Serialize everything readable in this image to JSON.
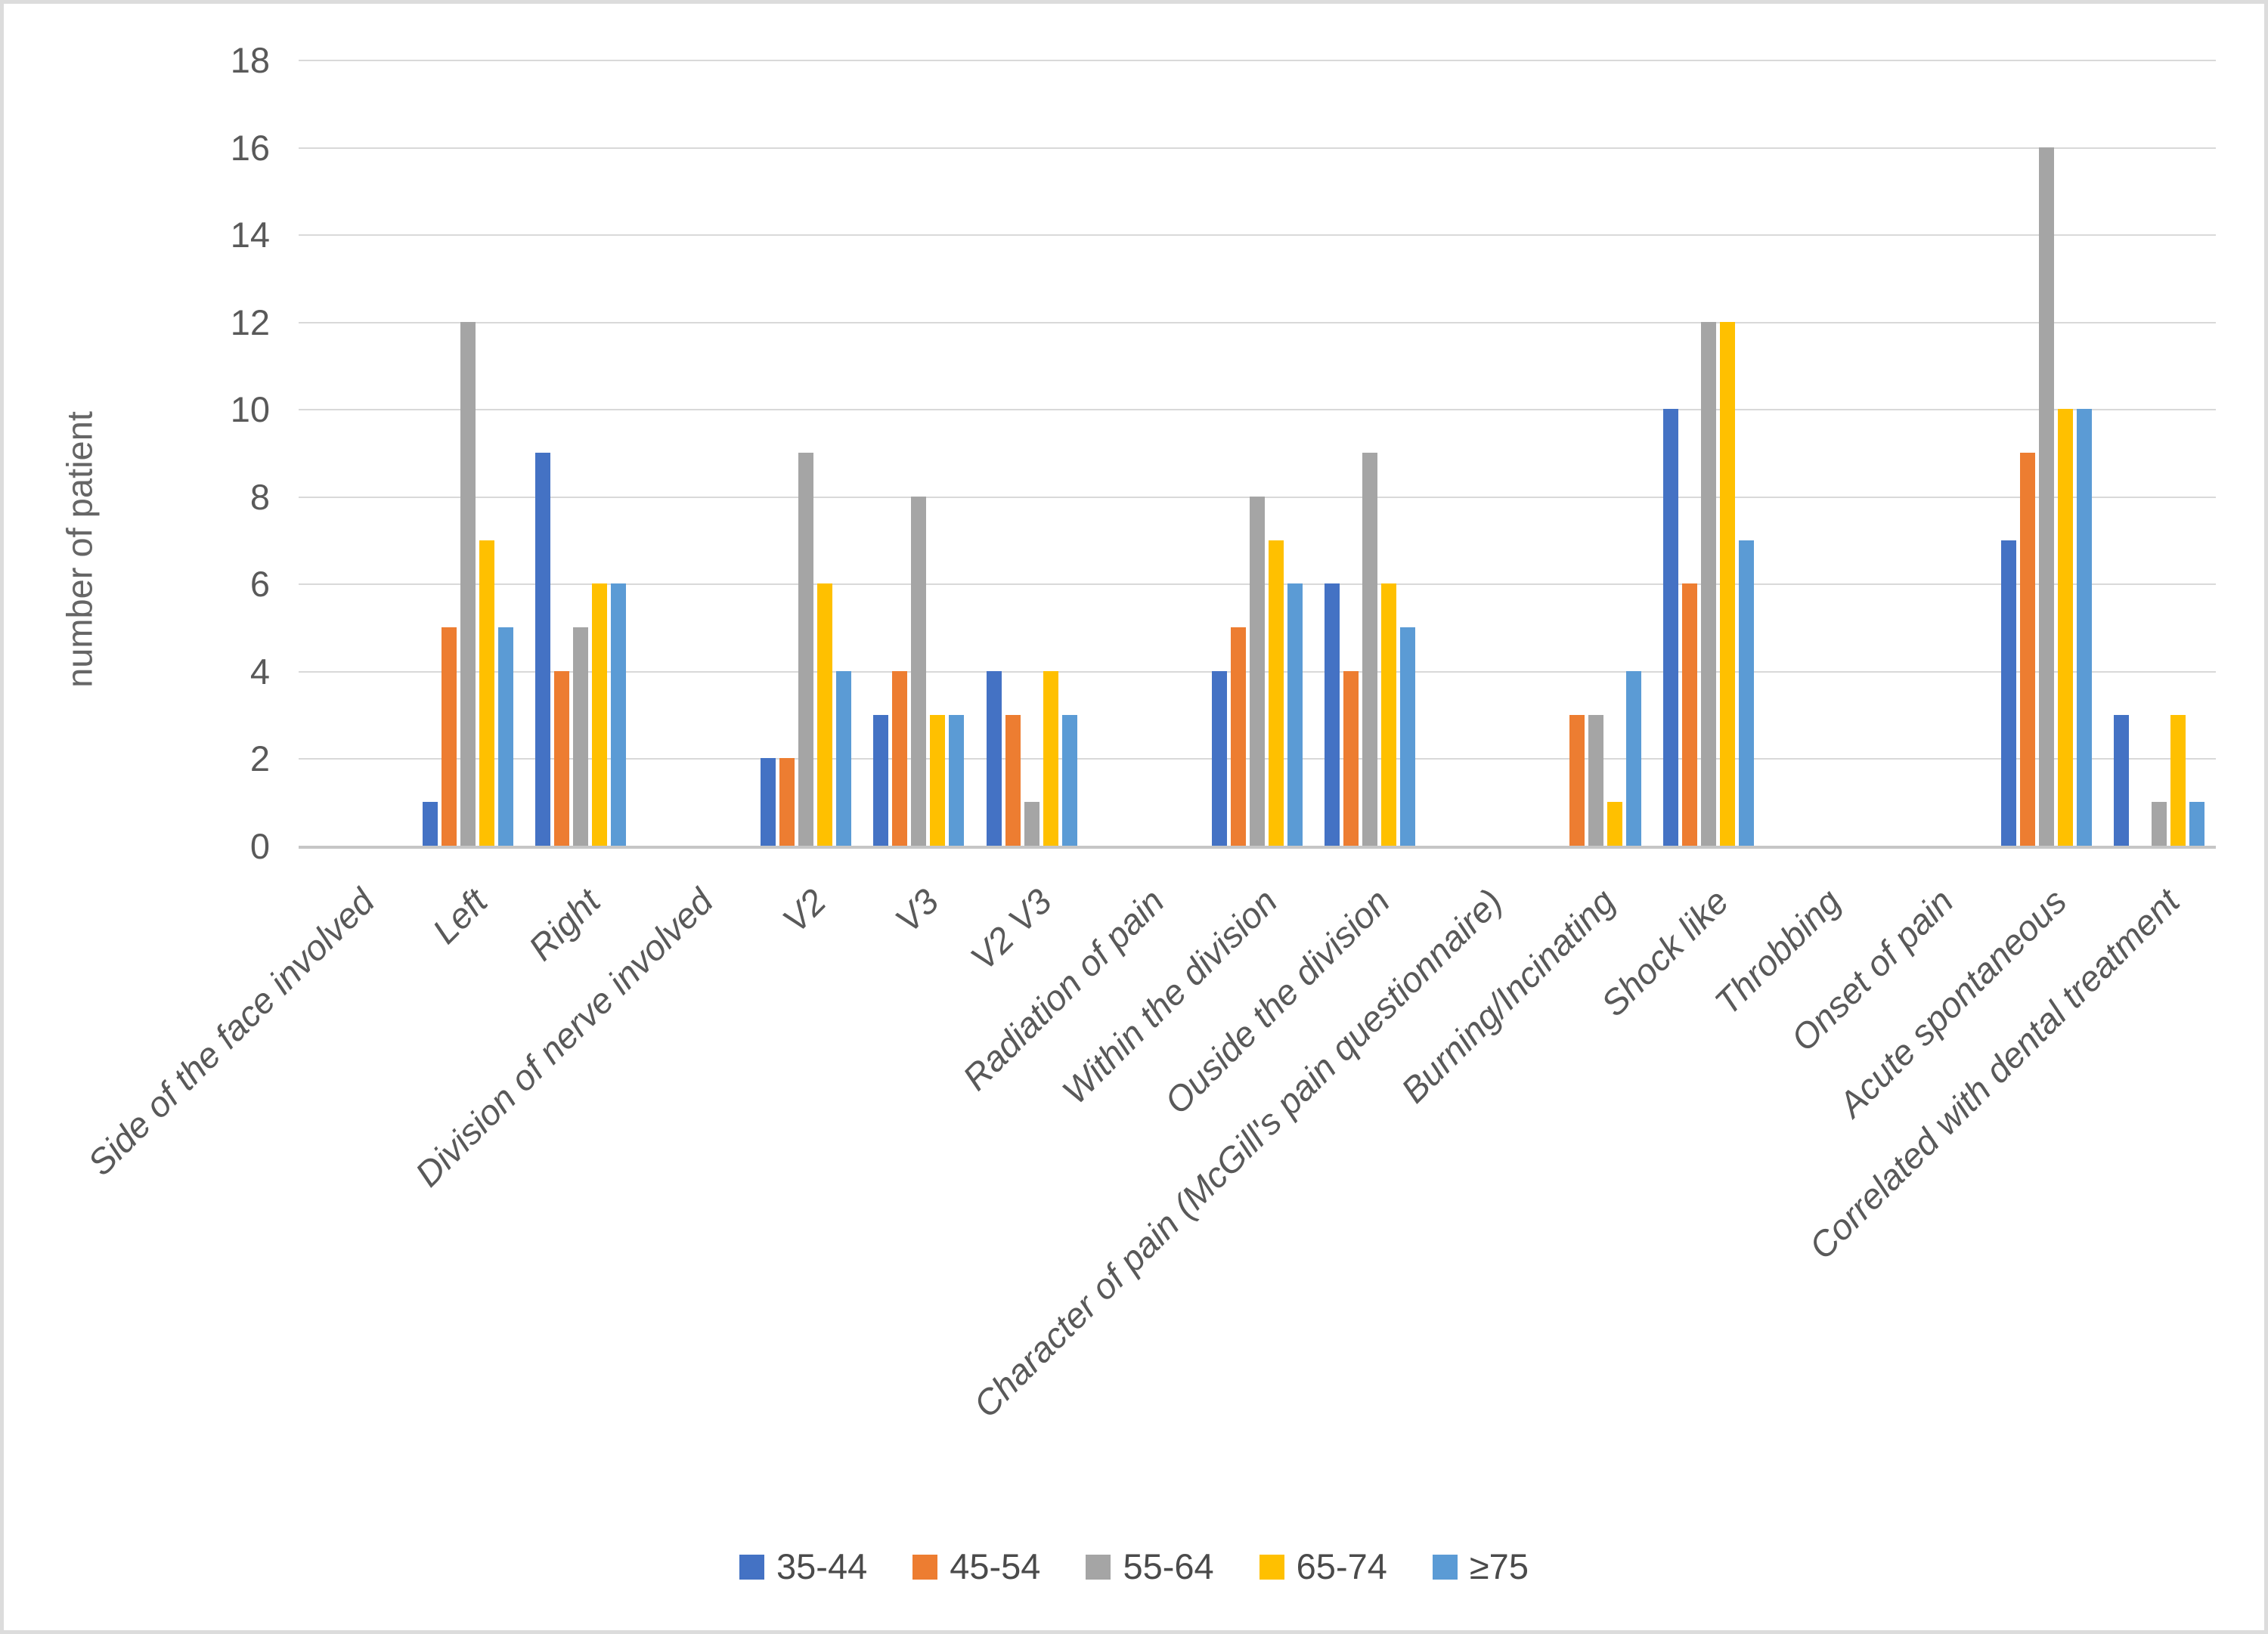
{
  "figure": {
    "background": "#FFFFFF",
    "border_color": "#DCDCDC"
  },
  "chart_data": {
    "type": "bar",
    "title": "",
    "xlabel": "",
    "ylabel": "number of patient",
    "ylim": [
      0,
      18
    ],
    "yticks": [
      0,
      2,
      4,
      6,
      8,
      10,
      12,
      14,
      16,
      18
    ],
    "grid": true,
    "legend_position": "bottom",
    "categories": [
      "Side of the face involved",
      "Left",
      "Right",
      "Division of nerve involved",
      "V2",
      "V3",
      "V2 V3",
      "Radiation of pain",
      "Within the division",
      "Ouside the division",
      "Character of pain (McGill's pain questionnaire)",
      "Burning/Incinating",
      "Shock like",
      "Throbbing",
      "Onset of pain",
      "Acute spontaneous",
      "Correlated with dental treatment"
    ],
    "series": [
      {
        "name": "35-44",
        "color": "#4472C4",
        "values": [
          0,
          1,
          9,
          0,
          2,
          3,
          4,
          0,
          4,
          6,
          0,
          0,
          10,
          0,
          0,
          7,
          3
        ]
      },
      {
        "name": "45-54",
        "color": "#ED7D31",
        "values": [
          0,
          5,
          4,
          0,
          2,
          4,
          3,
          0,
          5,
          4,
          0,
          3,
          6,
          0,
          0,
          9,
          0
        ]
      },
      {
        "name": "55-64",
        "color": "#A5A5A5",
        "values": [
          0,
          12,
          5,
          0,
          9,
          8,
          1,
          0,
          8,
          9,
          0,
          3,
          12,
          0,
          0,
          16,
          1
        ]
      },
      {
        "name": "65-74",
        "color": "#FFC000",
        "values": [
          0,
          7,
          6,
          0,
          6,
          3,
          4,
          0,
          7,
          6,
          0,
          1,
          12,
          0,
          0,
          10,
          3
        ]
      },
      {
        "name": "≥75",
        "color": "#5B9BD5",
        "values": [
          0,
          5,
          6,
          0,
          4,
          3,
          3,
          0,
          6,
          5,
          0,
          4,
          7,
          0,
          0,
          10,
          1
        ]
      }
    ],
    "colors": {
      "gridline": "#D9D9D9",
      "axis_line": "#C6C6C6",
      "tick_text": "#595959",
      "axis_title_text": "#666666",
      "legend_text": "#4A4A4A"
    }
  }
}
